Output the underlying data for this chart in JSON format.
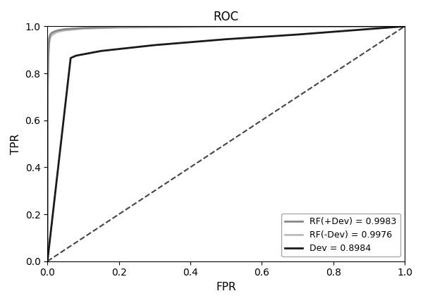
{
  "title": "ROC",
  "xlabel": "FPR",
  "ylabel": "TPR",
  "xlim": [
    0.0,
    1.0
  ],
  "ylim": [
    0.0,
    1.0
  ],
  "background_color": "#ffffff",
  "title_fontsize": 12,
  "axis_label_fontsize": 11,
  "rf_plus_dev_color": "#888888",
  "rf_minus_dev_color": "#bbbbbb",
  "dev_color": "#1a1a1a",
  "diagonal_color": "#444444",
  "linewidth_rf": 2.0,
  "linewidth_dev": 2.0,
  "linewidth_diag": 1.5,
  "legend_fontsize": 9,
  "x_rf_plus": [
    0.0,
    0.0005,
    0.001,
    0.003,
    0.005,
    0.008,
    0.012,
    0.02,
    0.03,
    0.05,
    0.1,
    0.2,
    0.5,
    1.0
  ],
  "y_rf_plus": [
    0.0,
    0.6,
    0.78,
    0.9,
    0.95,
    0.965,
    0.972,
    0.978,
    0.983,
    0.988,
    0.993,
    0.997,
    0.9995,
    1.0
  ],
  "x_rf_minus": [
    0.0,
    0.0005,
    0.001,
    0.003,
    0.005,
    0.008,
    0.012,
    0.02,
    0.03,
    0.05,
    0.1,
    0.2,
    0.5,
    1.0
  ],
  "y_rf_minus": [
    0.0,
    0.55,
    0.75,
    0.88,
    0.93,
    0.952,
    0.962,
    0.97,
    0.977,
    0.983,
    0.99,
    0.995,
    0.999,
    1.0
  ],
  "x_dev": [
    0.0,
    0.065,
    0.08,
    0.15,
    0.3,
    0.5,
    0.7,
    1.0
  ],
  "y_dev": [
    0.0,
    0.865,
    0.875,
    0.895,
    0.92,
    0.945,
    0.965,
    1.0
  ]
}
